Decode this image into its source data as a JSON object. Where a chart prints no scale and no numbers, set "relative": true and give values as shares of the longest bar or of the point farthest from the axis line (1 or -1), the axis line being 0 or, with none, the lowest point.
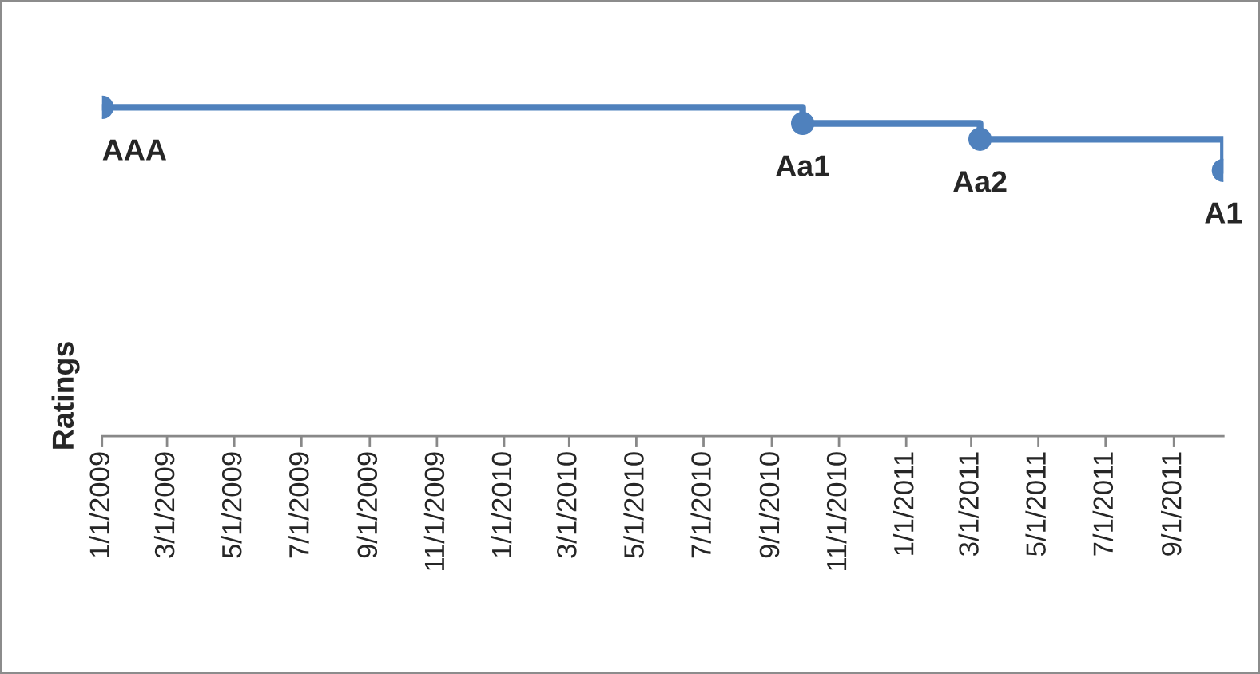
{
  "chart_data": {
    "type": "step",
    "ylabel": "Ratings",
    "relative": true,
    "x": [
      "2009-01-01",
      "2010-09-29",
      "2011-03-09",
      "2011-10-16"
    ],
    "series": [
      {
        "color": "#4f81bd",
        "values": [
          1,
          0.951,
          0.903,
          0.808
        ]
      }
    ],
    "annotations": [
      {
        "text": "AAA",
        "x": "2009-01-01",
        "y": 1
      },
      {
        "text": "Aa1",
        "x": "2010-09-29",
        "y": 0.951
      },
      {
        "text": "Aa2",
        "x": "2011-03-09",
        "y": 0.903
      },
      {
        "text": "A1",
        "x": "2011-10-16",
        "y": 0.808
      }
    ],
    "xlim": [
      "2009-01-01",
      "2011-10-16"
    ],
    "xticks": [
      {
        "value": "2009-01-01",
        "label": "1/1/2009"
      },
      {
        "value": "2009-03-01",
        "label": "3/1/2009"
      },
      {
        "value": "2009-05-01",
        "label": "5/1/2009"
      },
      {
        "value": "2009-07-01",
        "label": "7/1/2009"
      },
      {
        "value": "2009-09-01",
        "label": "9/1/2009"
      },
      {
        "value": "2009-11-01",
        "label": "11/1/2009"
      },
      {
        "value": "2010-01-01",
        "label": "1/1/2010"
      },
      {
        "value": "2010-03-01",
        "label": "3/1/2010"
      },
      {
        "value": "2010-05-01",
        "label": "5/1/2010"
      },
      {
        "value": "2010-07-01",
        "label": "7/1/2010"
      },
      {
        "value": "2010-09-01",
        "label": "9/1/2010"
      },
      {
        "value": "2010-11-01",
        "label": "11/1/2010"
      },
      {
        "value": "2011-01-01",
        "label": "1/1/2011"
      },
      {
        "value": "2011-03-01",
        "label": "3/1/2011"
      },
      {
        "value": "2011-05-01",
        "label": "5/1/2011"
      },
      {
        "value": "2011-07-01",
        "label": "7/1/2011"
      },
      {
        "value": "2011-09-01",
        "label": "9/1/2011"
      }
    ],
    "marker": "circle",
    "line_style": "solid",
    "grid": false,
    "legend": false
  }
}
